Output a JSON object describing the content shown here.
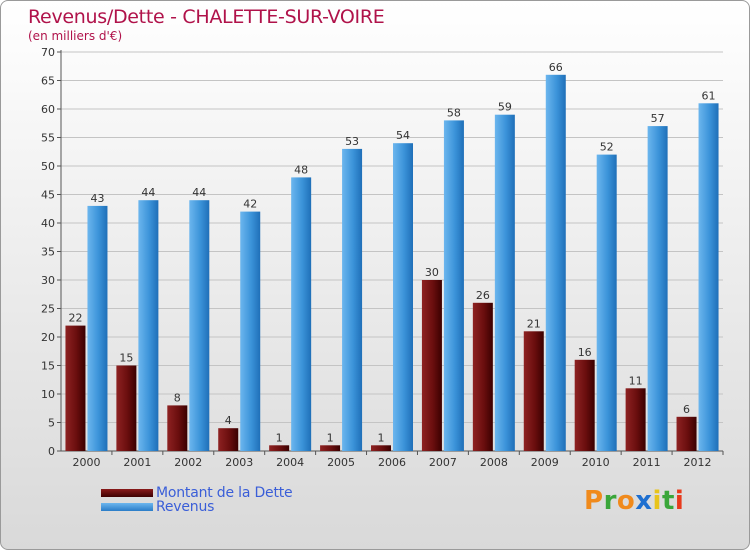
{
  "chart_data": {
    "type": "bar",
    "title": "Revenus/Dette - CHALETTE-SUR-VOIRE",
    "subtitle": "(en milliers d'€)",
    "categories": [
      "2000",
      "2001",
      "2002",
      "2003",
      "2004",
      "2005",
      "2006",
      "2007",
      "2008",
      "2009",
      "2010",
      "2011",
      "2012"
    ],
    "series": [
      {
        "name": "Montant de la Dette",
        "color": "#6e0e0e",
        "values": [
          22,
          15,
          8,
          4,
          1,
          1,
          1,
          30,
          26,
          21,
          16,
          11,
          6
        ]
      },
      {
        "name": "Revenus",
        "color": "#3a90d8",
        "values": [
          43,
          44,
          44,
          42,
          48,
          53,
          54,
          58,
          59,
          66,
          52,
          57,
          61
        ]
      }
    ],
    "ylim": [
      0,
      70
    ],
    "yticks": [
      0,
      5,
      10,
      15,
      20,
      25,
      30,
      35,
      40,
      45,
      50,
      55,
      60,
      65,
      70
    ],
    "grid": true,
    "xlabel": "",
    "ylabel": "",
    "legend_position": "bottom-left"
  },
  "brand": {
    "letters": [
      "P",
      "r",
      "o",
      "x",
      "i",
      "t",
      "i"
    ],
    "colors": [
      "#f08a1c",
      "#3aa63a",
      "#f08a1c",
      "#1e6fd0",
      "#e8c41c",
      "#3aa63a",
      "#e83a1c"
    ]
  }
}
